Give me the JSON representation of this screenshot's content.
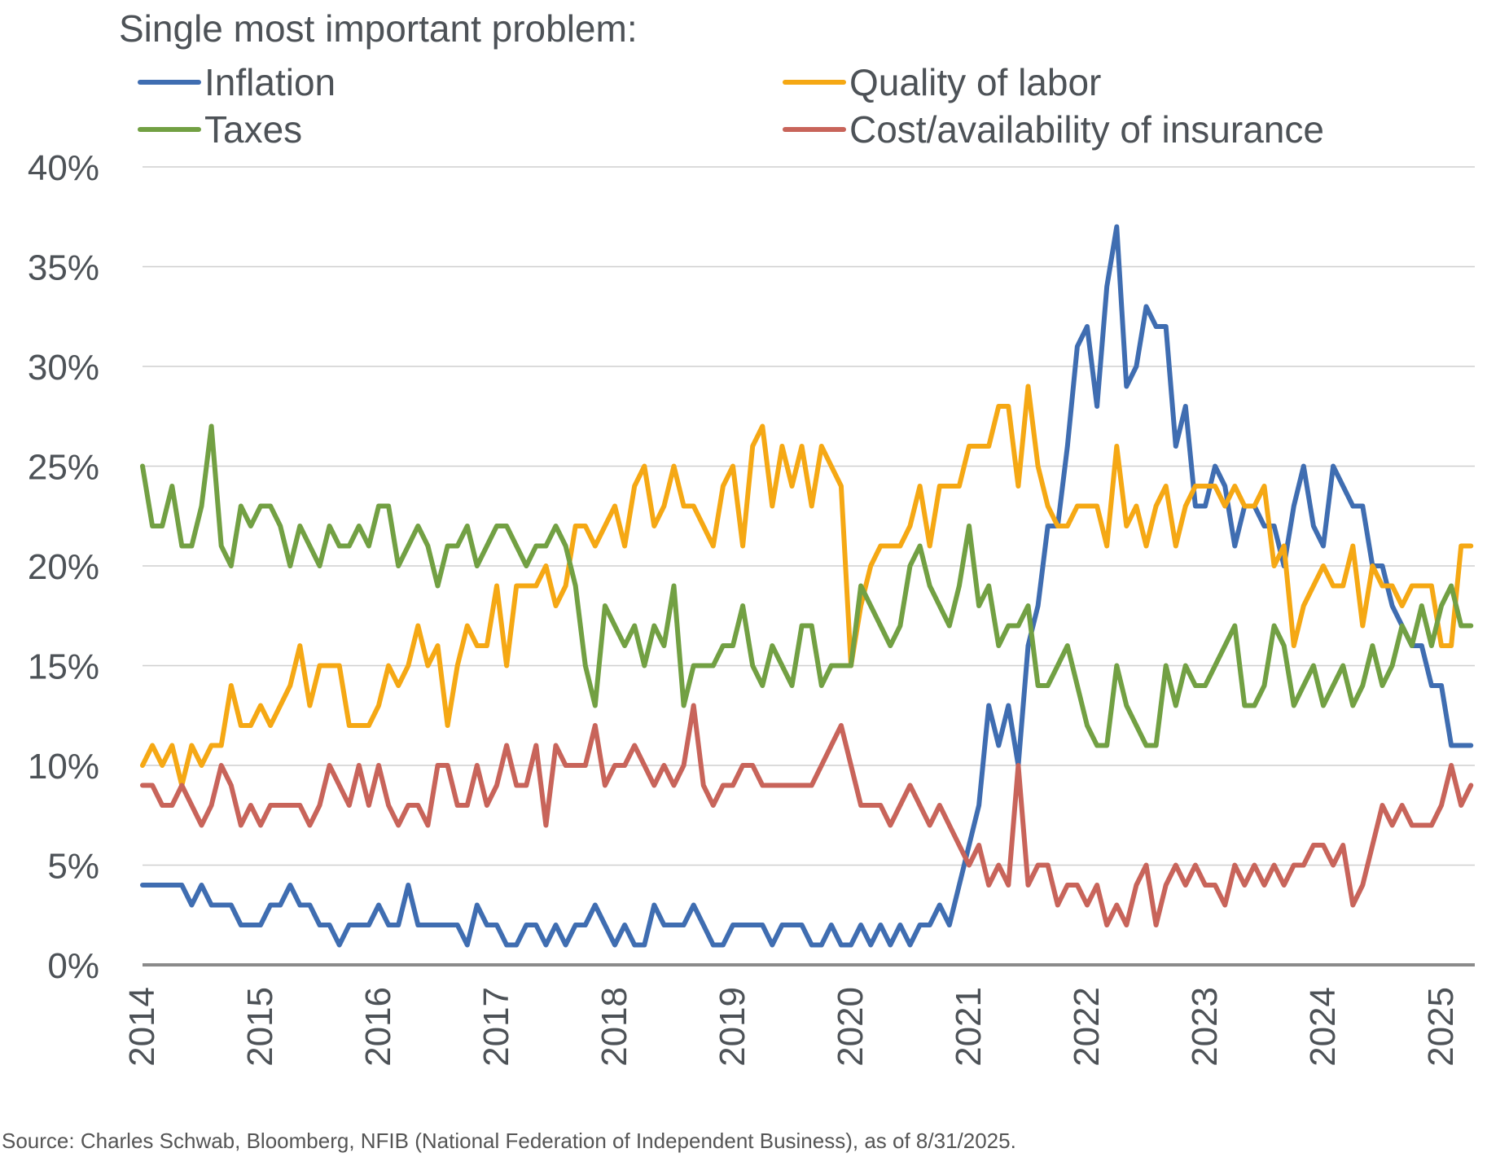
{
  "chart_data": {
    "type": "line",
    "title": "Single most important problem:",
    "xlabel": "",
    "ylabel": "",
    "ylim": [
      0,
      40
    ],
    "yticks": [
      "0%",
      "5%",
      "10%",
      "15%",
      "20%",
      "25%",
      "30%",
      "35%",
      "40%"
    ],
    "ytick_values": [
      0,
      5,
      10,
      15,
      20,
      25,
      30,
      35,
      40
    ],
    "xticks": [
      "2014",
      "2015",
      "2016",
      "2017",
      "2018",
      "2019",
      "2020",
      "2021",
      "2022",
      "2023",
      "2024",
      "2025"
    ],
    "x_start": "2014-01",
    "x_frequency": "monthly",
    "grid": true,
    "legend_placement": "top",
    "series": [
      {
        "name": "Inflation",
        "color": "#3f6db1",
        "values": [
          4,
          4,
          4,
          4,
          4,
          3,
          4,
          3,
          3,
          3,
          2,
          2,
          2,
          3,
          3,
          4,
          3,
          3,
          2,
          2,
          1,
          2,
          2,
          2,
          3,
          2,
          2,
          4,
          2,
          2,
          2,
          2,
          2,
          1,
          3,
          2,
          2,
          1,
          1,
          2,
          2,
          1,
          2,
          1,
          2,
          2,
          3,
          2,
          1,
          2,
          1,
          1,
          3,
          2,
          2,
          2,
          3,
          2,
          1,
          1,
          2,
          2,
          2,
          2,
          1,
          2,
          2,
          2,
          1,
          1,
          2,
          1,
          1,
          2,
          1,
          2,
          1,
          2,
          1,
          2,
          2,
          3,
          2,
          4,
          6,
          8,
          13,
          11,
          13,
          10,
          16,
          18,
          22,
          22,
          26,
          31,
          32,
          28,
          34,
          37,
          29,
          30,
          33,
          32,
          32,
          26,
          28,
          23,
          23,
          25,
          24,
          21,
          23,
          23,
          22,
          22,
          20,
          23,
          25,
          22,
          21,
          25,
          24,
          23,
          23,
          20,
          20,
          18,
          17,
          16,
          16,
          14,
          14,
          11,
          11,
          11
        ]
      },
      {
        "name": "Quality of labor",
        "color": "#f5a814",
        "values": [
          10,
          11,
          10,
          11,
          9,
          11,
          10,
          11,
          11,
          14,
          12,
          12,
          13,
          12,
          13,
          14,
          16,
          13,
          15,
          15,
          15,
          12,
          12,
          12,
          13,
          15,
          14,
          15,
          17,
          15,
          16,
          12,
          15,
          17,
          16,
          16,
          19,
          15,
          19,
          19,
          19,
          20,
          18,
          19,
          22,
          22,
          21,
          22,
          23,
          21,
          24,
          25,
          22,
          23,
          25,
          23,
          23,
          22,
          21,
          24,
          25,
          21,
          26,
          27,
          23,
          26,
          24,
          26,
          23,
          26,
          25,
          24,
          15,
          18,
          20,
          21,
          21,
          21,
          22,
          24,
          21,
          24,
          24,
          24,
          26,
          26,
          26,
          28,
          28,
          24,
          29,
          25,
          23,
          22,
          22,
          23,
          23,
          23,
          21,
          26,
          22,
          23,
          21,
          23,
          24,
          21,
          23,
          24,
          24,
          24,
          23,
          24,
          23,
          23,
          24,
          20,
          21,
          16,
          18,
          19,
          20,
          19,
          19,
          21,
          17,
          20,
          19,
          19,
          18,
          19,
          19,
          19,
          16,
          16,
          21,
          21
        ]
      },
      {
        "name": "Taxes",
        "color": "#72a043",
        "values": [
          25,
          22,
          22,
          24,
          21,
          21,
          23,
          27,
          21,
          20,
          23,
          22,
          23,
          23,
          22,
          20,
          22,
          21,
          20,
          22,
          21,
          21,
          22,
          21,
          23,
          23,
          20,
          21,
          22,
          21,
          19,
          21,
          21,
          22,
          20,
          21,
          22,
          22,
          21,
          20,
          21,
          21,
          22,
          21,
          19,
          15,
          13,
          18,
          17,
          16,
          17,
          15,
          17,
          16,
          19,
          13,
          15,
          15,
          15,
          16,
          16,
          18,
          15,
          14,
          16,
          15,
          14,
          17,
          17,
          14,
          15,
          15,
          15,
          19,
          18,
          17,
          16,
          17,
          20,
          21,
          19,
          18,
          17,
          19,
          22,
          18,
          19,
          16,
          17,
          17,
          18,
          14,
          14,
          15,
          16,
          14,
          12,
          11,
          11,
          15,
          13,
          12,
          11,
          11,
          15,
          13,
          15,
          14,
          14,
          15,
          16,
          17,
          13,
          13,
          14,
          17,
          16,
          13,
          14,
          15,
          13,
          14,
          15,
          13,
          14,
          16,
          14,
          15,
          17,
          16,
          18,
          16,
          18,
          19,
          17,
          17
        ]
      },
      {
        "name": "Cost/availability of insurance",
        "color": "#c8645a",
        "values": [
          9,
          9,
          8,
          8,
          9,
          8,
          7,
          8,
          10,
          9,
          7,
          8,
          7,
          8,
          8,
          8,
          8,
          7,
          8,
          10,
          9,
          8,
          10,
          8,
          10,
          8,
          7,
          8,
          8,
          7,
          10,
          10,
          8,
          8,
          10,
          8,
          9,
          11,
          9,
          9,
          11,
          7,
          11,
          10,
          10,
          10,
          12,
          9,
          10,
          10,
          11,
          10,
          9,
          10,
          9,
          10,
          13,
          9,
          8,
          9,
          9,
          10,
          10,
          9,
          9,
          9,
          9,
          9,
          9,
          10,
          11,
          12,
          10,
          8,
          8,
          8,
          7,
          8,
          9,
          8,
          7,
          8,
          7,
          6,
          5,
          6,
          4,
          5,
          4,
          10,
          4,
          5,
          5,
          3,
          4,
          4,
          3,
          4,
          2,
          3,
          2,
          4,
          5,
          2,
          4,
          5,
          4,
          5,
          4,
          4,
          3,
          5,
          4,
          5,
          4,
          5,
          4,
          5,
          5,
          6,
          6,
          5,
          6,
          3,
          4,
          6,
          8,
          7,
          8,
          7,
          7,
          7,
          8,
          10,
          8,
          9
        ]
      }
    ],
    "source": "Source: Charles Schwab, Bloomberg, NFIB (National Federation of Independent Business), as of 8/31/2025."
  }
}
